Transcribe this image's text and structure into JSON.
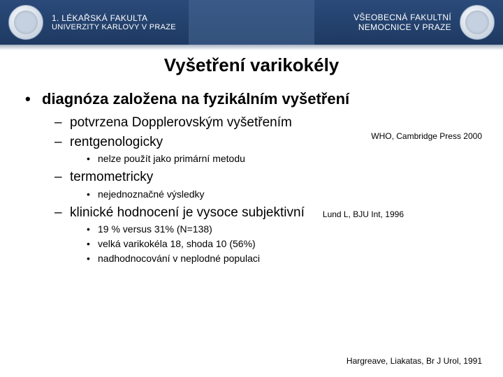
{
  "header": {
    "left_line1": "1. LÉKAŘSKÁ FAKULTA",
    "left_line2": "UNIVERZITY KARLOVY V PRAZE",
    "right_line1": "VŠEOBECNÁ FAKULTNÍ",
    "right_line2": "NEMOCNICE V PRAZE",
    "bg_color": "#1e3a62",
    "text_color": "#ffffff"
  },
  "title": "Vyšetření varikokély",
  "bullets": {
    "l1_1": "diagnóza  založena na fyzikálním vyšetření",
    "l2_1": "potvrzena Dopplerovským vyšetřením",
    "l2_2": "rentgenologicky",
    "l3_2_1": "nelze použít jako primární metodu",
    "l2_3": "termometricky",
    "l3_3_1": "nejednoznačné výsledky",
    "l2_4": "klinické hodnocení je vysoce subjektivní",
    "l3_4_1": "19 %  versus   31%   (N=138)",
    "l3_4_2": "velká varikokéla 18, shoda 10 (56%)",
    "l3_4_3": "nadhodnocování v neplodné populaci"
  },
  "citations": {
    "c1": "WHO, Cambridge Press 2000",
    "c2": "Lund L, BJU Int, 1996",
    "c3": "Hargreave, Liakatas, Br J Urol, 1991"
  },
  "styling": {
    "title_fontsize": 26,
    "l1_fontsize": 22,
    "l2_fontsize": 19,
    "l3_fontsize": 14,
    "citation_fontsize": 12,
    "background": "#ffffff",
    "text_color": "#000000",
    "font_family": "Arial"
  }
}
